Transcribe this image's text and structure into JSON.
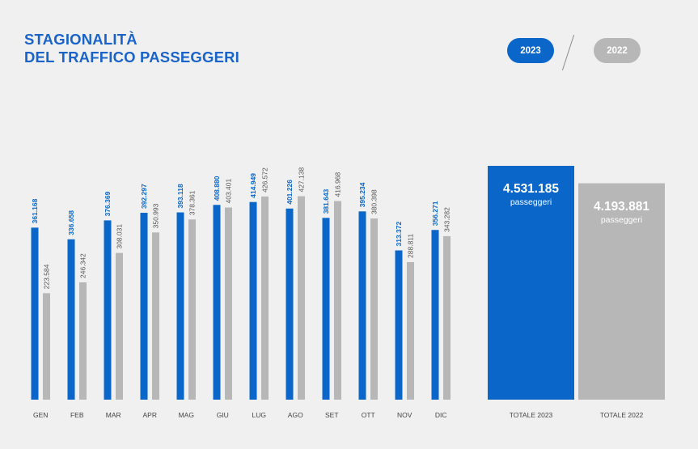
{
  "title": {
    "line1": "STAGIONALITÀ",
    "line2": "DEL TRAFFICO PASSEGGERI"
  },
  "legend": {
    "year_a": "2023",
    "year_b": "2022"
  },
  "colors": {
    "blue": "#0a67c9",
    "gray": "#b7b7b7",
    "title": "#1a63c9",
    "axis_text": "#444444"
  },
  "chart_data": [
    {
      "type": "bar",
      "categories": [
        "GEN",
        "FEB",
        "MAR",
        "APR",
        "MAG",
        "GIU",
        "LUG",
        "AGO",
        "SET",
        "OTT",
        "NOV",
        "DIC"
      ],
      "series": [
        {
          "name": "2023",
          "values": [
            361168,
            336658,
            376369,
            392297,
            393118,
            408880,
            414949,
            401226,
            381643,
            395234,
            313372,
            356271
          ],
          "labels": [
            "361.168",
            "336.658",
            "376.369",
            "392.297",
            "393.118",
            "408.880",
            "414.949",
            "401.226",
            "381.643",
            "395.234",
            "313.372",
            "356.271"
          ]
        },
        {
          "name": "2022",
          "values": [
            223584,
            246342,
            308031,
            350993,
            378361,
            403401,
            426572,
            427138,
            416968,
            380398,
            288811,
            343282
          ],
          "labels": [
            "223.584",
            "246.342",
            "308.031",
            "350.993",
            "378.361",
            "403.401",
            "426.572",
            "427.138",
            "416.968",
            "380.398",
            "288.811",
            "343.282"
          ]
        }
      ],
      "ylim": [
        0,
        450000
      ]
    },
    {
      "type": "bar",
      "categories": [
        "TOTALE 2023",
        "TOTALE 2022"
      ],
      "values": [
        4531185,
        4193881
      ],
      "labels": [
        "4.531.185",
        "4.193.881"
      ],
      "unit_label": "passeggeri"
    }
  ]
}
